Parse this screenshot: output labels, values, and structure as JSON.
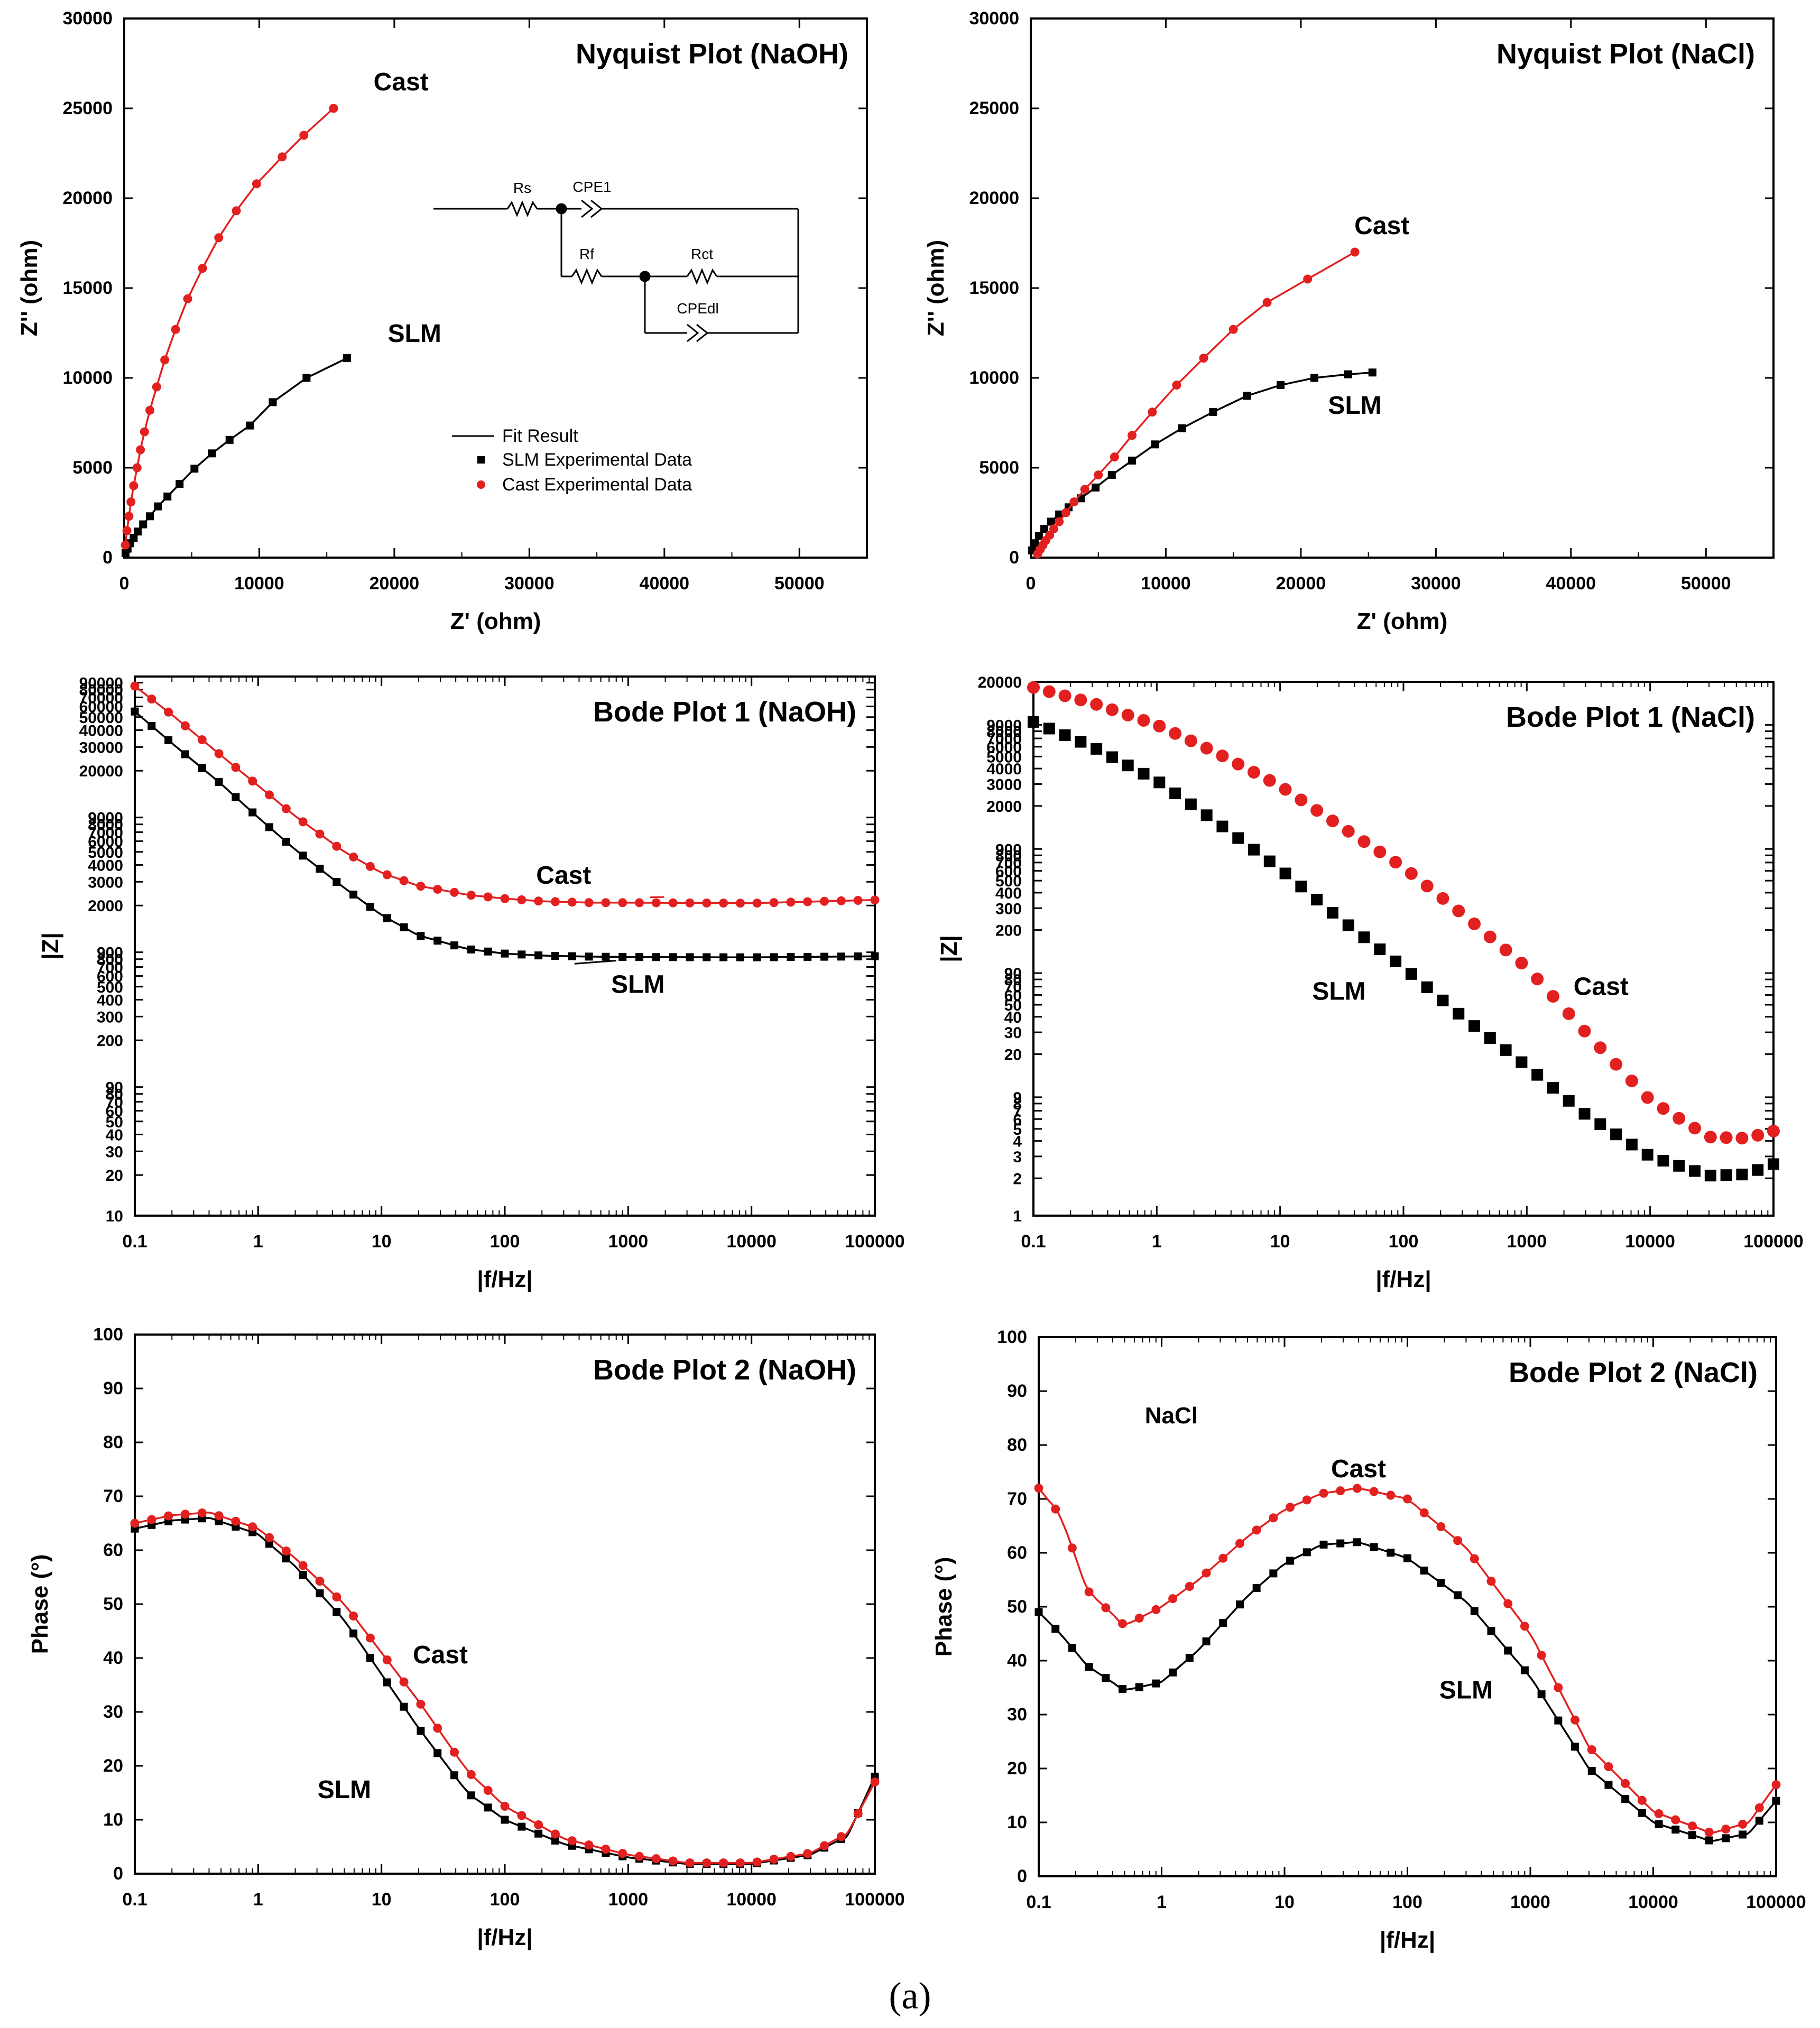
{
  "caption": "(a)",
  "colors": {
    "slm": "#000000",
    "cast": "#e32020",
    "frame": "#000000"
  },
  "chart_data": [
    {
      "id": "nyquist-naoh",
      "type": "scatter",
      "title": "Nyquist Plot (NaOH)",
      "xlabel": "Z' (ohm)",
      "ylabel": "Z'' (ohm)",
      "xscale": "linear",
      "yscale": "linear",
      "xlim": [
        0,
        55000
      ],
      "ylim": [
        0,
        30000
      ],
      "xticks": [
        0,
        10000,
        20000,
        30000,
        40000,
        50000
      ],
      "yticks": [
        0,
        5000,
        10000,
        15000,
        20000,
        25000,
        30000
      ],
      "xtick_labels": [
        "0",
        "10000",
        "20000",
        "30000",
        "40000",
        "50000"
      ],
      "ytick_labels": [
        "0",
        "5000",
        "10000",
        "15000",
        "20000",
        "25000",
        "30000"
      ],
      "legend": {
        "position": "center-left",
        "entries": [
          "Fit Result",
          "SLM Experimental Data",
          "Cast Experimental Data"
        ]
      },
      "circuit_labels": [
        "Rs",
        "CPE1",
        "Rf",
        "Rct",
        "CPEdl"
      ],
      "series": [
        {
          "name": "SLM",
          "label": "SLM",
          "color_key": "slm",
          "marker": "square",
          "fit": true,
          "x": [
            100,
            250,
            450,
            700,
            1000,
            1400,
            1900,
            2500,
            3200,
            4100,
            5200,
            6500,
            7800,
            9300,
            11000,
            13500,
            16500
          ],
          "y": [
            250,
            500,
            800,
            1100,
            1450,
            1850,
            2300,
            2850,
            3400,
            4100,
            4950,
            5800,
            6550,
            7350,
            8650,
            10000,
            11100
          ],
          "annotation": {
            "x": 21500,
            "y": 12000
          }
        },
        {
          "name": "Cast",
          "label": "Cast",
          "color_key": "cast",
          "marker": "circle",
          "fit": true,
          "x": [
            80,
            200,
            350,
            500,
            700,
            950,
            1200,
            1500,
            1900,
            2400,
            3000,
            3800,
            4700,
            5800,
            7000,
            8300,
            9800,
            11700,
            13300,
            15500
          ],
          "y": [
            700,
            1500,
            2300,
            3100,
            4000,
            5000,
            6000,
            7000,
            8200,
            9500,
            11000,
            12700,
            14400,
            16100,
            17800,
            19300,
            20800,
            22300,
            23500,
            25000
          ],
          "annotation": {
            "x": 20500,
            "y": 26000
          }
        }
      ]
    },
    {
      "id": "nyquist-nacl",
      "type": "scatter",
      "title": "Nyquist Plot (NaCl)",
      "xlabel": "Z' (ohm)",
      "ylabel": "Z'' (ohm)",
      "xscale": "linear",
      "yscale": "linear",
      "xlim": [
        0,
        55000
      ],
      "ylim": [
        0,
        30000
      ],
      "xticks": [
        0,
        10000,
        20000,
        30000,
        40000,
        50000
      ],
      "yticks": [
        0,
        5000,
        10000,
        15000,
        20000,
        25000,
        30000
      ],
      "xtick_labels": [
        "0",
        "10000",
        "20000",
        "30000",
        "40000",
        "50000"
      ],
      "ytick_labels": [
        "0",
        "5000",
        "10000",
        "15000",
        "20000",
        "25000",
        "30000"
      ],
      "series": [
        {
          "name": "SLM",
          "label": "SLM",
          "color_key": "slm",
          "marker": "square",
          "fit": true,
          "x": [
            100,
            300,
            600,
            1000,
            1500,
            2100,
            2800,
            3700,
            4800,
            6000,
            7500,
            9200,
            11200,
            13500,
            16000,
            18500,
            21000,
            23500,
            25300
          ],
          "y": [
            400,
            800,
            1200,
            1600,
            2000,
            2400,
            2800,
            3300,
            3900,
            4600,
            5400,
            6300,
            7200,
            8100,
            9000,
            9600,
            10000,
            10200,
            10300
          ],
          "annotation": {
            "x": 24000,
            "y": 8000
          }
        },
        {
          "name": "Cast",
          "label": "Cast",
          "color_key": "cast",
          "marker": "circle",
          "fit": true,
          "x": [
            500,
            700,
            900,
            1100,
            1400,
            1700,
            2100,
            2600,
            3200,
            4000,
            5000,
            6200,
            7500,
            9000,
            10800,
            12800,
            15000,
            17500,
            20500,
            24000
          ],
          "y": [
            200,
            450,
            700,
            950,
            1250,
            1600,
            2000,
            2500,
            3100,
            3800,
            4600,
            5600,
            6800,
            8100,
            9600,
            11100,
            12700,
            14200,
            15500,
            17000
          ],
          "annotation": {
            "x": 26000,
            "y": 18000
          }
        }
      ]
    },
    {
      "id": "bode1-naoh",
      "type": "scatter",
      "title": "Bode Plot 1 (NaOH)",
      "xlabel": "|f/Hz|",
      "ylabel": "|Z|",
      "xscale": "log",
      "yscale": "log",
      "xlim": [
        0.1,
        100000
      ],
      "ylim": [
        10,
        100000
      ],
      "xticks": [
        0.1,
        1,
        10,
        100,
        1000,
        10000,
        100000
      ],
      "xtick_labels": [
        "0.1",
        "1",
        "10",
        "100",
        "1000",
        "10000",
        "100000"
      ],
      "yticks": [
        10,
        20,
        30,
        40,
        50,
        60,
        70,
        80,
        90,
        200,
        300,
        400,
        500,
        600,
        700,
        800,
        900,
        2000,
        3000,
        4000,
        5000,
        6000,
        7000,
        8000,
        9000,
        20000,
        30000,
        40000,
        50000,
        60000,
        70000,
        80000,
        90000
      ],
      "ytick_labels": [
        "10",
        "20",
        "30",
        "40",
        "50",
        "60",
        "70",
        "80",
        "90",
        "200",
        "300",
        "400",
        "500",
        "600",
        "700",
        "800",
        "900",
        "2000",
        "3000",
        "4000",
        "5000",
        "6000",
        "7000",
        "8000",
        "9000",
        "20000",
        "30000",
        "40000",
        "50000",
        "60000",
        "70000",
        "80000",
        "90000"
      ],
      "series": [
        {
          "name": "SLM",
          "label": "SLM",
          "color_key": "slm",
          "marker": "square",
          "fit": true,
          "dense": true,
          "x": [
            0.1,
            0.2,
            0.5,
            1,
            2,
            5,
            10,
            20,
            50,
            100,
            200,
            500,
            1000,
            10000,
            100000
          ],
          "y": [
            55000,
            32000,
            16000,
            9000,
            5200,
            2700,
            1700,
            1200,
            950,
            880,
            850,
            835,
            830,
            825,
            840
          ],
          "annotation": {
            "x": 1200,
            "y": 450
          },
          "pointer": {
            "x": 800,
            "y": 780
          }
        },
        {
          "name": "Cast",
          "label": "Cast",
          "color_key": "cast",
          "marker": "circle",
          "fit": true,
          "dense": true,
          "x": [
            0.1,
            0.2,
            0.5,
            1,
            2,
            5,
            10,
            20,
            50,
            100,
            200,
            500,
            1000,
            10000,
            100000
          ],
          "y": [
            85000,
            52000,
            26000,
            15500,
            9200,
            5000,
            3500,
            2800,
            2400,
            2250,
            2150,
            2100,
            2100,
            2080,
            2200
          ],
          "annotation": {
            "x": 300,
            "y": 2900
          },
          "pointer": {
            "x": 1500,
            "y": 2300
          }
        }
      ]
    },
    {
      "id": "bode1-nacl",
      "type": "scatter",
      "title": "Bode Plot 1 (NaCl)",
      "xlabel": "|f/Hz|",
      "ylabel": "|Z|",
      "xscale": "log",
      "yscale": "log",
      "xlim": [
        0.1,
        100000
      ],
      "ylim": [
        1,
        20000
      ],
      "xticks": [
        0.1,
        1,
        10,
        100,
        1000,
        10000,
        100000
      ],
      "xtick_labels": [
        "0.1",
        "1",
        "10",
        "100",
        "1000",
        "10000",
        "100000"
      ],
      "yticks": [
        1,
        2,
        3,
        4,
        5,
        6,
        7,
        8,
        9,
        20,
        30,
        40,
        50,
        60,
        70,
        80,
        90,
        200,
        300,
        400,
        500,
        600,
        700,
        800,
        900,
        2000,
        3000,
        4000,
        5000,
        6000,
        7000,
        8000,
        9000,
        20000
      ],
      "ytick_labels": [
        "1",
        "2",
        "3",
        "4",
        "5",
        "6",
        "7",
        "8",
        "9",
        "20",
        "30",
        "40",
        "50",
        "60",
        "70",
        "80",
        "90",
        "200",
        "300",
        "400",
        "500",
        "600",
        "700",
        "800",
        "900",
        "2000",
        "3000",
        "4000",
        "5000",
        "6000",
        "7000",
        "8000",
        "9000",
        "20000"
      ],
      "series": [
        {
          "name": "SLM",
          "label": "SLM",
          "color_key": "slm",
          "marker": "square",
          "fit": false,
          "dense": true,
          "big": true,
          "x": [
            0.1,
            0.3,
            1,
            3,
            10,
            30,
            100,
            300,
            1000,
            3000,
            10000,
            30000,
            60000,
            100000
          ],
          "y": [
            9500,
            6000,
            3200,
            1500,
            620,
            250,
            100,
            40,
            16,
            6.5,
            3,
            2.1,
            2.15,
            2.6
          ],
          "annotation": {
            "x": 30,
            "y": 55
          }
        },
        {
          "name": "Cast",
          "label": "Cast",
          "color_key": "cast",
          "marker": "circle",
          "fit": false,
          "dense": true,
          "big": true,
          "x": [
            0.1,
            0.3,
            1,
            3,
            10,
            30,
            100,
            300,
            1000,
            3000,
            10000,
            30000,
            60000,
            100000
          ],
          "y": [
            18000,
            13500,
            9000,
            5400,
            2900,
            1400,
            640,
            270,
            100,
            30,
            8.5,
            4.3,
            4.2,
            4.8
          ],
          "annotation": {
            "x": 4000,
            "y": 60
          }
        }
      ]
    },
    {
      "id": "bode2-naoh",
      "type": "scatter",
      "title": "Bode Plot 2 (NaOH)",
      "xlabel": "|f/Hz|",
      "ylabel": "Phase (°)",
      "xscale": "log",
      "yscale": "linear",
      "xlim": [
        0.1,
        100000
      ],
      "ylim": [
        0,
        100
      ],
      "xticks": [
        0.1,
        1,
        10,
        100,
        1000,
        10000,
        100000
      ],
      "xtick_labels": [
        "0.1",
        "1",
        "10",
        "100",
        "1000",
        "10000",
        "100000"
      ],
      "yticks": [
        0,
        10,
        20,
        30,
        40,
        50,
        60,
        70,
        80,
        90,
        100
      ],
      "ytick_labels": [
        "0",
        "10",
        "20",
        "30",
        "40",
        "50",
        "60",
        "70",
        "80",
        "90",
        "100"
      ],
      "series": [
        {
          "name": "SLM",
          "label": "SLM",
          "color_key": "slm",
          "marker": "square",
          "fit": true,
          "dense": true,
          "x": [
            0.1,
            0.2,
            0.4,
            1,
            2,
            5,
            10,
            20,
            50,
            100,
            300,
            1000,
            3000,
            10000,
            30000,
            60000,
            100000
          ],
          "y": [
            64,
            65.5,
            66,
            63,
            57,
            47,
            37,
            27,
            15,
            10,
            5.5,
            3,
            1.8,
            1.8,
            3.5,
            7,
            18
          ],
          "annotation": {
            "x": 5,
            "y": 14
          }
        },
        {
          "name": "Cast",
          "label": "Cast",
          "color_key": "cast",
          "marker": "circle",
          "fit": true,
          "dense": true,
          "x": [
            0.1,
            0.2,
            0.4,
            1,
            2,
            5,
            10,
            20,
            50,
            100,
            300,
            1000,
            3000,
            10000,
            30000,
            60000,
            100000
          ],
          "y": [
            65,
            66.5,
            67,
            64,
            58.5,
            50,
            41,
            32,
            19,
            12.5,
            6.5,
            3.5,
            2,
            2,
            3.8,
            7.5,
            17
          ],
          "annotation": {
            "x": 30,
            "y": 39
          }
        }
      ]
    },
    {
      "id": "bode2-nacl",
      "type": "scatter",
      "title": "Bode Plot 2 (NaCl)",
      "xlabel": "|f/Hz|",
      "ylabel": "Phase (°)",
      "xscale": "log",
      "yscale": "linear",
      "xlim": [
        0.1,
        100000
      ],
      "ylim": [
        0,
        100
      ],
      "xticks": [
        0.1,
        1,
        10,
        100,
        1000,
        10000,
        100000
      ],
      "xtick_labels": [
        "0.1",
        "1",
        "10",
        "100",
        "1000",
        "10000",
        "100000"
      ],
      "yticks": [
        0,
        10,
        20,
        30,
        40,
        50,
        60,
        70,
        80,
        90,
        100
      ],
      "ytick_labels": [
        "0",
        "10",
        "20",
        "30",
        "40",
        "50",
        "60",
        "70",
        "80",
        "90",
        "100"
      ],
      "annotations": [
        {
          "text": "NaCl",
          "x": 1.2,
          "y": 84
        }
      ],
      "series": [
        {
          "name": "SLM",
          "label": "SLM",
          "color_key": "slm",
          "marker": "square",
          "fit": true,
          "dense": true,
          "x": [
            0.1,
            0.15,
            0.25,
            0.5,
            1,
            2,
            5,
            10,
            20,
            40,
            100,
            300,
            1000,
            3000,
            10000,
            30000,
            60000,
            100000
          ],
          "y": [
            49,
            45,
            39,
            34.5,
            36,
            42,
            52,
            58,
            61.5,
            62,
            59,
            51,
            37,
            20,
            10,
            6.5,
            8,
            14
          ],
          "annotation": {
            "x": 300,
            "y": 33
          }
        },
        {
          "name": "Cast",
          "label": "Cast",
          "color_key": "cast",
          "marker": "circle",
          "fit": true,
          "dense": true,
          "x": [
            0.1,
            0.15,
            0.25,
            0.5,
            1,
            2,
            5,
            10,
            20,
            40,
            100,
            300,
            1000,
            3000,
            10000,
            30000,
            60000,
            100000
          ],
          "y": [
            72,
            67,
            53,
            46.5,
            50,
            55,
            63,
            68,
            71,
            72,
            70,
            61,
            45,
            24,
            12,
            8,
            10,
            17
          ],
          "annotation": {
            "x": 40,
            "y": 74
          }
        }
      ]
    }
  ]
}
